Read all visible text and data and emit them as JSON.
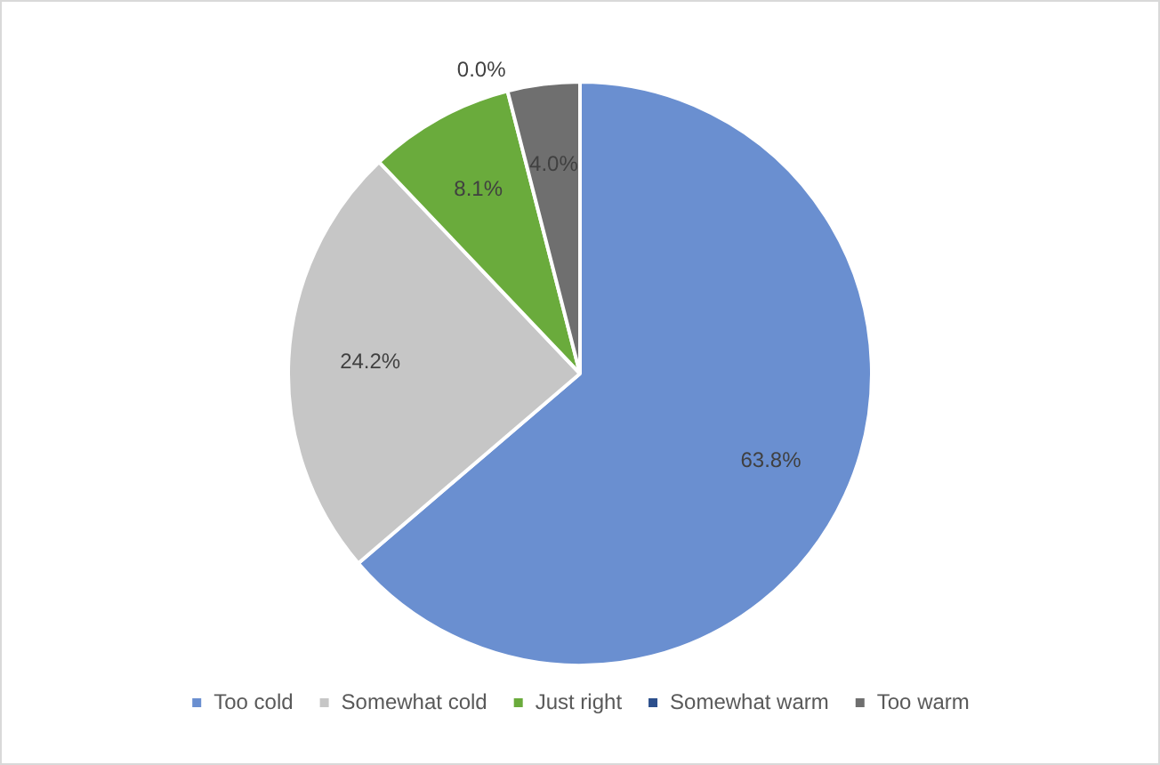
{
  "chart_data": {
    "type": "pie",
    "categories": [
      "Too cold",
      "Somewhat cold",
      "Just right",
      "Somewhat warm",
      "Too warm"
    ],
    "values": [
      63.8,
      24.2,
      8.1,
      0.0,
      4.0
    ],
    "colors": [
      "#6a8fd0",
      "#c6c6c6",
      "#6aab3c",
      "#2c4f8c",
      "#6f6f6f"
    ],
    "value_labels": [
      "63.8%",
      "24.2%",
      "8.1%",
      "0.0%",
      "4.0%"
    ],
    "legend": "bottom"
  }
}
